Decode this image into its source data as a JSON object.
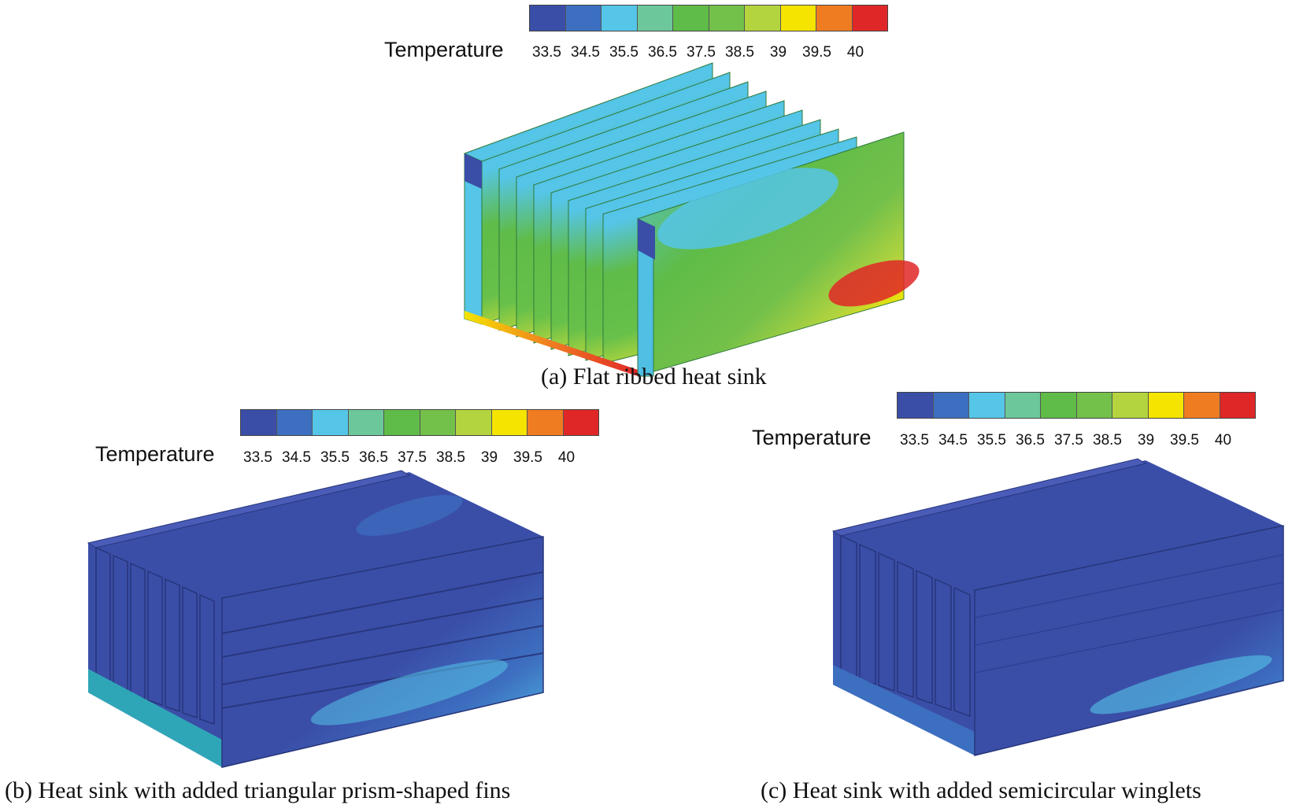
{
  "legend": {
    "title": "Temperature",
    "colors": [
      "#3a4ea8",
      "#3d6fc0",
      "#55c5e8",
      "#6cc79a",
      "#5fbc48",
      "#73c04a",
      "#b3d43e",
      "#f5e400",
      "#f07c22",
      "#e02727"
    ],
    "ticks": [
      "33.5",
      "34.5",
      "35.5",
      "36.5",
      "37.5",
      "38.5",
      "39",
      "39.5",
      "40"
    ]
  },
  "panels": {
    "a": {
      "caption": "(a) Flat ribbed heat sink"
    },
    "b": {
      "caption": "(b) Heat sink with added triangular prism-shaped fins"
    },
    "c": {
      "caption": "(c) Heat sink with added semicircular winglets"
    }
  }
}
